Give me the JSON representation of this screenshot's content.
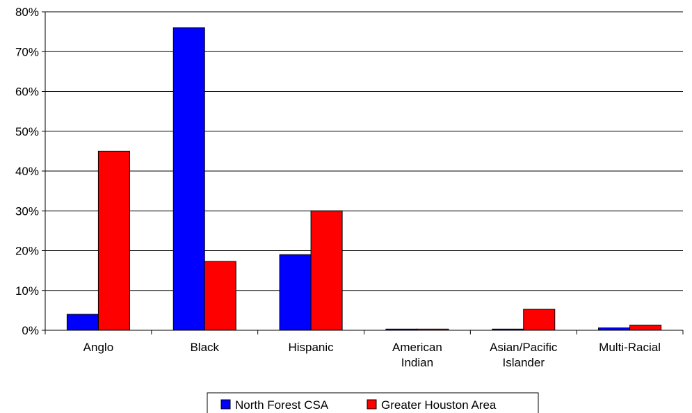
{
  "chart_data": {
    "type": "bar",
    "title": "",
    "xlabel": "",
    "ylabel": "",
    "ylim": [
      0,
      80
    ],
    "yticks": [
      "0%",
      "10%",
      "20%",
      "30%",
      "40%",
      "50%",
      "60%",
      "70%",
      "80%"
    ],
    "grid": true,
    "legend_position": "bottom",
    "categories": [
      [
        "Anglo"
      ],
      [
        "Black"
      ],
      [
        "Hispanic"
      ],
      [
        "American",
        "Indian"
      ],
      [
        "Asian/Pacific",
        "Islander"
      ],
      [
        "Multi-Racial"
      ]
    ],
    "series": [
      {
        "name": "North Forest CSA",
        "color": "#0000ff",
        "values": [
          4,
          76,
          19,
          0.3,
          0.3,
          0.6
        ]
      },
      {
        "name": "Greater Houston Area",
        "color": "#ff0000",
        "values": [
          45,
          17.3,
          30,
          0.3,
          5.3,
          1.3
        ]
      }
    ]
  }
}
